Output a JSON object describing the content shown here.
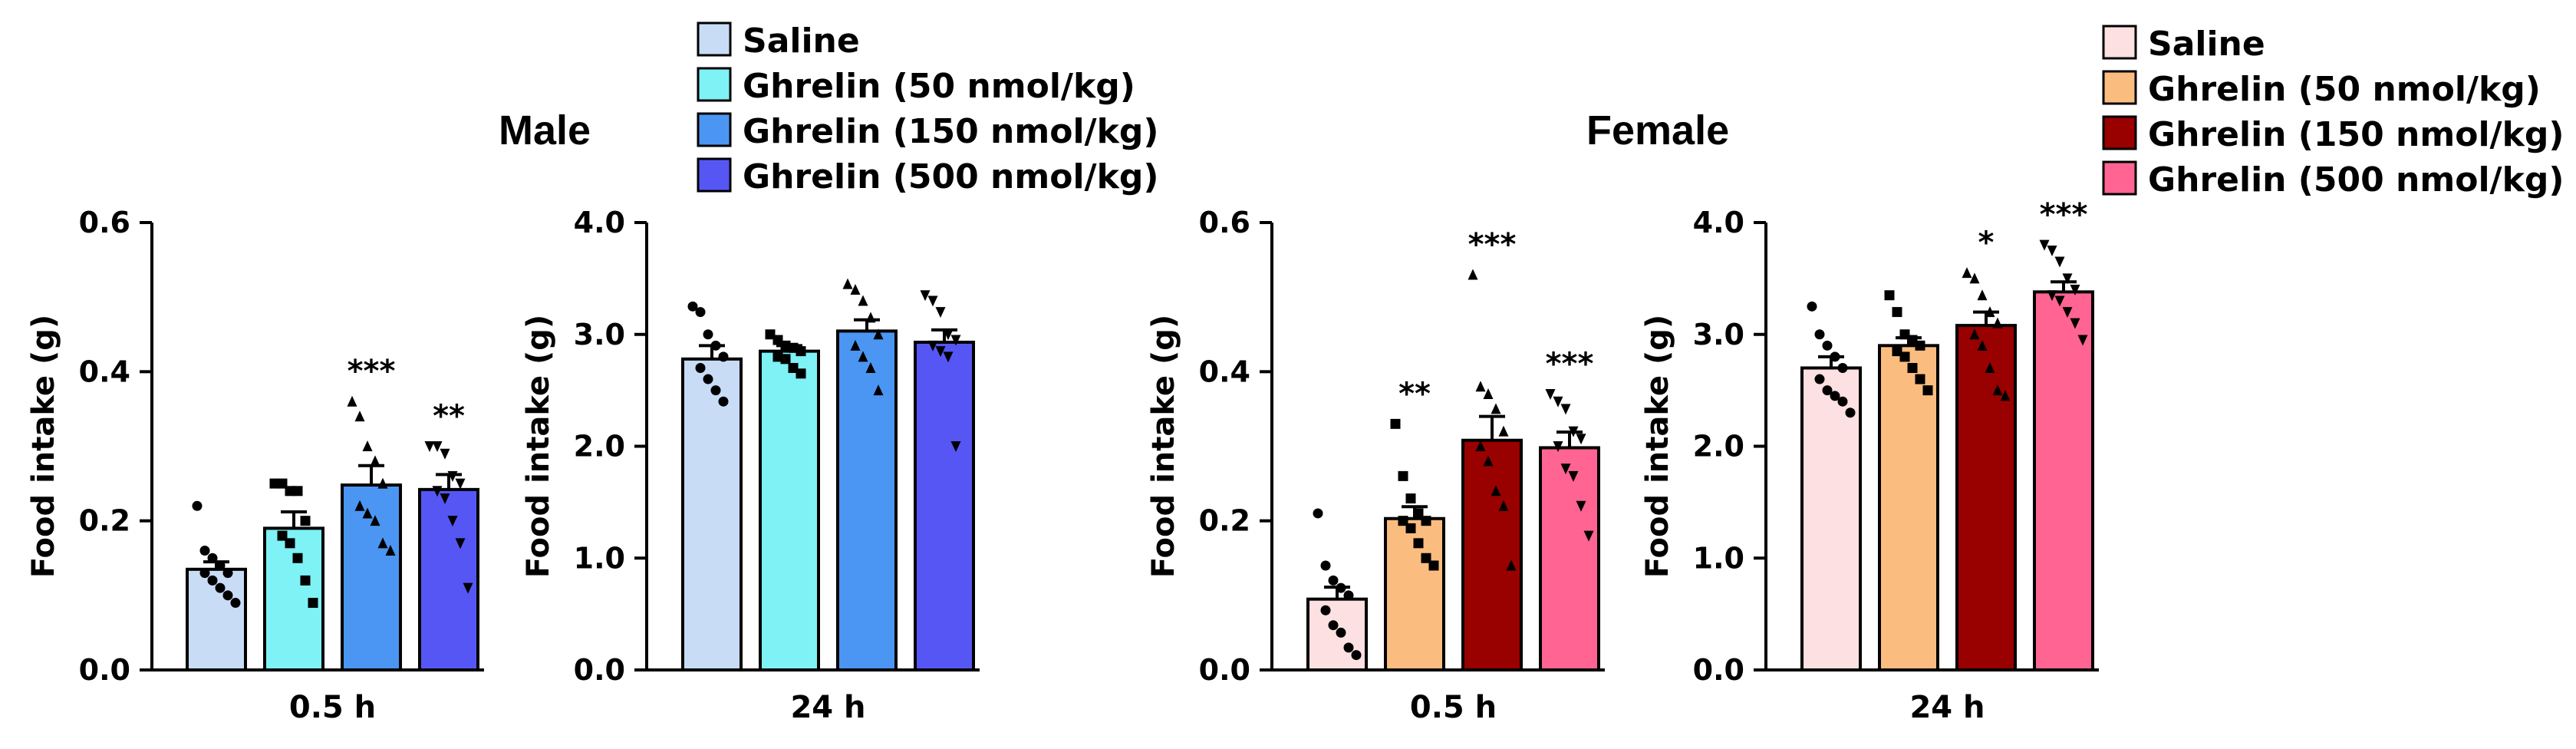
{
  "panels": {
    "male": {
      "title": "Male"
    },
    "female": {
      "title": "Female"
    }
  },
  "legends": {
    "male": [
      {
        "label": "Saline",
        "color": "#c8dcf6"
      },
      {
        "label": "Ghrelin (50 nmol/kg)",
        "color": "#7ef2f5"
      },
      {
        "label": "Ghrelin (150 nmol/kg)",
        "color": "#4b96f2"
      },
      {
        "label": "Ghrelin (500 nmol/kg)",
        "color": "#5656f5"
      }
    ],
    "female": [
      {
        "label": "Saline",
        "color": "#fde0e1"
      },
      {
        "label": "Ghrelin (50 nmol/kg)",
        "color": "#fbbd7f"
      },
      {
        "label": "Ghrelin (150 nmol/kg)",
        "color": "#990000"
      },
      {
        "label": "Ghrelin (500 nmol/kg)",
        "color": "#ff6492"
      }
    ]
  },
  "chart_data": [
    {
      "type": "bar",
      "panel": "male",
      "xlabel": "0.5 h",
      "ylabel": "Food intake (g)",
      "ylim": [
        0,
        0.6
      ],
      "yticks": [
        "0.0",
        "0.2",
        "0.4",
        "0.6"
      ],
      "colors": [
        "#c8dcf6",
        "#7ef2f5",
        "#4b96f2",
        "#5656f5"
      ],
      "series": [
        {
          "name": "Saline",
          "mean": 0.135,
          "sem": 0.01,
          "sig": "",
          "points": [
            0.22,
            0.16,
            0.15,
            0.14,
            0.13,
            0.13,
            0.12,
            0.11,
            0.1,
            0.09
          ]
        },
        {
          "name": "Ghrelin (50 nmol/kg)",
          "mean": 0.19,
          "sem": 0.022,
          "sig": "",
          "points": [
            0.25,
            0.25,
            0.24,
            0.24,
            0.2,
            0.18,
            0.17,
            0.15,
            0.12,
            0.09
          ]
        },
        {
          "name": "Ghrelin (150 nmol/kg)",
          "mean": 0.248,
          "sem": 0.026,
          "sig": "***",
          "points": [
            0.36,
            0.34,
            0.3,
            0.28,
            0.25,
            0.22,
            0.21,
            0.2,
            0.17,
            0.16
          ]
        },
        {
          "name": "Ghrelin (500 nmol/kg)",
          "mean": 0.242,
          "sem": 0.02,
          "sig": "**",
          "points": [
            0.3,
            0.3,
            0.29,
            0.26,
            0.25,
            0.24,
            0.23,
            0.2,
            0.17,
            0.11
          ]
        }
      ]
    },
    {
      "type": "bar",
      "panel": "male",
      "xlabel": "24 h",
      "ylabel": "Food intake (g)",
      "ylim": [
        0,
        4.0
      ],
      "yticks": [
        "0.0",
        "1.0",
        "2.0",
        "3.0",
        "4.0"
      ],
      "colors": [
        "#c8dcf6",
        "#7ef2f5",
        "#4b96f2",
        "#5656f5"
      ],
      "series": [
        {
          "name": "Saline",
          "mean": 2.78,
          "sem": 0.12,
          "sig": "",
          "points": [
            3.25,
            3.2,
            3.0,
            2.9,
            2.8,
            2.7,
            2.6,
            2.5,
            2.4
          ]
        },
        {
          "name": "Ghrelin (50 nmol/kg)",
          "mean": 2.85,
          "sem": 0.05,
          "sig": "",
          "points": [
            3.0,
            2.95,
            2.9,
            2.88,
            2.85,
            2.8,
            2.78,
            2.7,
            2.65
          ]
        },
        {
          "name": "Ghrelin (150 nmol/kg)",
          "mean": 3.03,
          "sem": 0.1,
          "sig": "",
          "points": [
            3.45,
            3.4,
            3.3,
            3.15,
            3.0,
            2.9,
            2.8,
            2.7,
            2.5
          ]
        },
        {
          "name": "Ghrelin (500 nmol/kg)",
          "mean": 2.93,
          "sem": 0.11,
          "sig": "",
          "points": [
            3.35,
            3.3,
            3.2,
            3.0,
            2.95,
            2.9,
            2.85,
            2.8,
            2.0
          ]
        }
      ]
    },
    {
      "type": "bar",
      "panel": "female",
      "xlabel": "0.5 h",
      "ylabel": "Food intake (g)",
      "ylim": [
        0,
        0.6
      ],
      "yticks": [
        "0.0",
        "0.2",
        "0.4",
        "0.6"
      ],
      "colors": [
        "#fde0e1",
        "#fbbd7f",
        "#990000",
        "#ff6492"
      ],
      "series": [
        {
          "name": "Saline",
          "mean": 0.095,
          "sem": 0.016,
          "sig": "",
          "points": [
            0.21,
            0.14,
            0.12,
            0.11,
            0.1,
            0.08,
            0.06,
            0.05,
            0.03,
            0.02
          ]
        },
        {
          "name": "Ghrelin (50 nmol/kg)",
          "mean": 0.203,
          "sem": 0.016,
          "sig": "**",
          "points": [
            0.33,
            0.26,
            0.23,
            0.21,
            0.2,
            0.2,
            0.19,
            0.17,
            0.15,
            0.14
          ]
        },
        {
          "name": "Ghrelin (150 nmol/kg)",
          "mean": 0.308,
          "sem": 0.032,
          "sig": "***",
          "points": [
            0.53,
            0.38,
            0.37,
            0.35,
            0.32,
            0.3,
            0.28,
            0.24,
            0.22,
            0.14
          ]
        },
        {
          "name": "Ghrelin (500 nmol/kg)",
          "mean": 0.298,
          "sem": 0.021,
          "sig": "***",
          "points": [
            0.37,
            0.36,
            0.35,
            0.32,
            0.31,
            0.3,
            0.27,
            0.26,
            0.22,
            0.18
          ]
        }
      ]
    },
    {
      "type": "bar",
      "panel": "female",
      "xlabel": "24 h",
      "ylabel": "Food intake (g)",
      "ylim": [
        0,
        4.0
      ],
      "yticks": [
        "0.0",
        "1.0",
        "2.0",
        "3.0",
        "4.0"
      ],
      "colors": [
        "#fde0e1",
        "#fbbd7f",
        "#990000",
        "#ff6492"
      ],
      "series": [
        {
          "name": "Saline",
          "mean": 2.7,
          "sem": 0.1,
          "sig": "",
          "points": [
            3.25,
            3.0,
            2.9,
            2.8,
            2.7,
            2.6,
            2.5,
            2.45,
            2.4,
            2.3
          ]
        },
        {
          "name": "Ghrelin (50 nmol/kg)",
          "mean": 2.9,
          "sem": 0.07,
          "sig": "",
          "points": [
            3.35,
            3.2,
            3.0,
            2.95,
            2.9,
            2.85,
            2.8,
            2.7,
            2.6,
            2.5
          ]
        },
        {
          "name": "Ghrelin (150 nmol/kg)",
          "mean": 3.08,
          "sem": 0.12,
          "sig": "*",
          "points": [
            3.55,
            3.5,
            3.35,
            3.2,
            3.1,
            3.0,
            2.9,
            2.7,
            2.5,
            2.45
          ]
        },
        {
          "name": "Ghrelin (500 nmol/kg)",
          "mean": 3.38,
          "sem": 0.09,
          "sig": "***",
          "points": [
            3.8,
            3.75,
            3.65,
            3.5,
            3.4,
            3.35,
            3.3,
            3.2,
            3.1,
            2.95
          ]
        }
      ]
    }
  ]
}
